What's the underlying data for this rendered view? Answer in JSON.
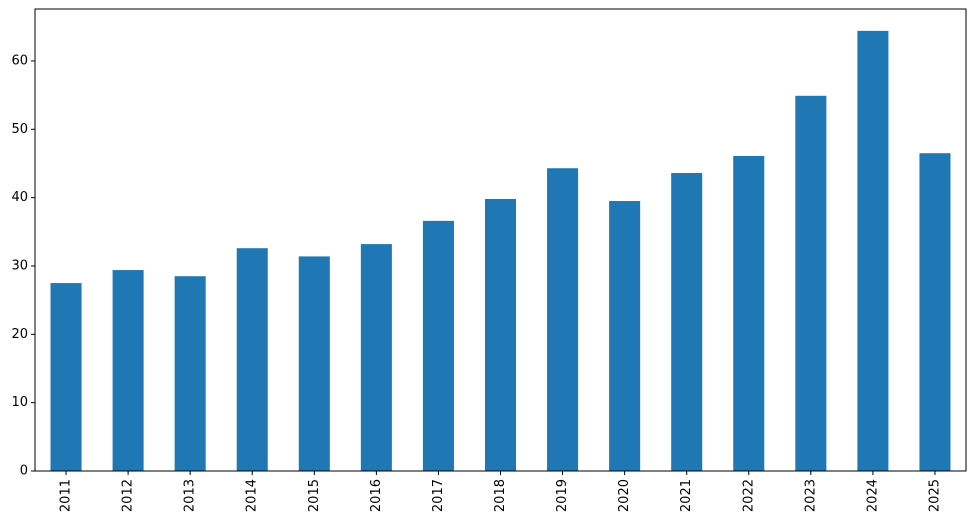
{
  "chart_data": {
    "type": "bar",
    "title": "",
    "xlabel": "",
    "ylabel": "",
    "categories": [
      "2011",
      "2012",
      "2013",
      "2014",
      "2015",
      "2016",
      "2017",
      "2018",
      "2019",
      "2020",
      "2021",
      "2022",
      "2023",
      "2024",
      "2025"
    ],
    "values": [
      27.5,
      29.4,
      28.5,
      32.6,
      31.4,
      33.2,
      36.6,
      39.8,
      44.3,
      39.5,
      43.6,
      46.1,
      54.9,
      64.4,
      46.5
    ],
    "ylim": [
      0,
      67.6
    ],
    "yticks": [
      0,
      10,
      20,
      30,
      40,
      50,
      60
    ],
    "bar_color": "#1f77b4",
    "grid": false,
    "legend": "none"
  }
}
